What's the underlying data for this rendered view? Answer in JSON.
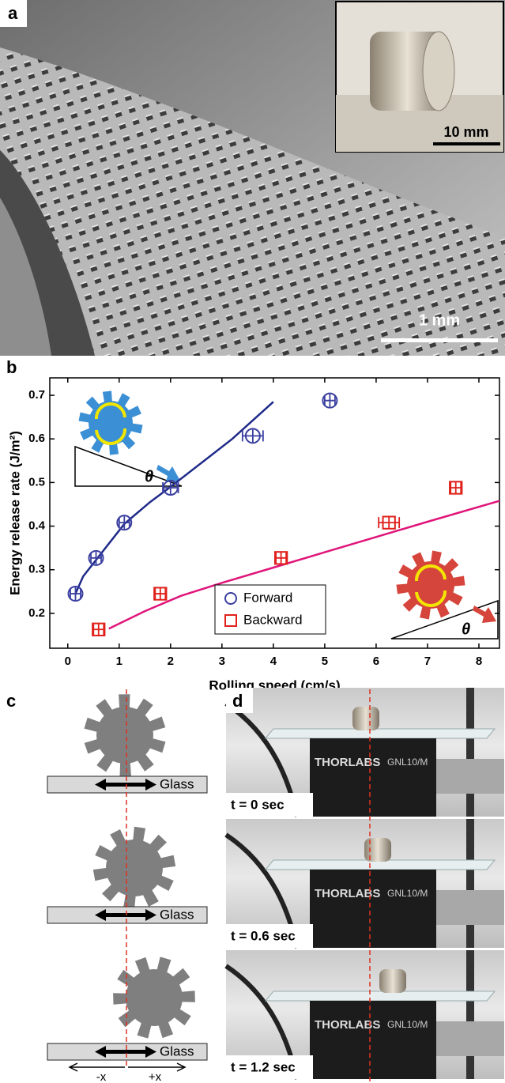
{
  "panel_labels": [
    "a",
    "b",
    "c",
    "d"
  ],
  "image_a": {
    "inset_scale": "10 mm",
    "scale": "1 mm"
  },
  "chart_data": {
    "type": "scatter",
    "xlabel": "Rolling speed (cm/s)",
    "ylabel": "Energy release rate (J/m²)",
    "angle_symbol": "θ",
    "xlim": [
      -0.35,
      8.4
    ],
    "ylim": [
      0.12,
      0.74
    ],
    "xticks": [
      0,
      1,
      2,
      3,
      4,
      5,
      6,
      7,
      8
    ],
    "yticks": [
      0.2,
      0.3,
      0.4,
      0.5,
      0.6,
      0.7
    ],
    "legend": "lower center",
    "series": [
      {
        "name": "Forward",
        "color": "#3a3fa0",
        "marker": "circle",
        "x": [
          0.15,
          0.55,
          1.1,
          2.0,
          3.6,
          5.1
        ],
        "values": [
          0.245,
          0.327,
          0.408,
          0.488,
          0.607,
          0.688
        ],
        "xerr": [
          0.1,
          0.1,
          0.1,
          0.15,
          0.2,
          0.1
        ]
      },
      {
        "name": "Backward",
        "color": "#e0201b",
        "marker": "square",
        "x": [
          0.6,
          1.8,
          4.15,
          6.25,
          7.55
        ],
        "values": [
          0.163,
          0.245,
          0.327,
          0.408,
          0.488
        ],
        "xerr": [
          0.1,
          0.1,
          0.1,
          0.2,
          0.1
        ]
      }
    ],
    "fit_lines": [
      {
        "color": "#1f2a8a",
        "x": [
          0.15,
          0.3,
          0.6,
          1.1,
          1.6,
          2.0,
          2.6,
          3.2,
          4.0
        ],
        "values": [
          0.245,
          0.285,
          0.33,
          0.405,
          0.455,
          0.49,
          0.545,
          0.6,
          0.685
        ]
      },
      {
        "color": "#e0157a",
        "x": [
          0.8,
          1.5,
          2.2,
          3,
          4,
          5,
          6,
          7,
          8.4
        ],
        "values": [
          0.165,
          0.205,
          0.24,
          0.27,
          0.305,
          0.34,
          0.375,
          0.41,
          0.458
        ]
      }
    ]
  },
  "diagram_c": {
    "glass_labels": [
      "Glass",
      "Glass",
      "Glass"
    ],
    "directions": [
      "-x",
      "+x"
    ]
  },
  "photos_d": {
    "brand": "THORLABS",
    "model": "GNL10/M",
    "times": [
      "t = 0 sec",
      "t = 0.6 sec",
      "t = 1.2 sec"
    ]
  }
}
